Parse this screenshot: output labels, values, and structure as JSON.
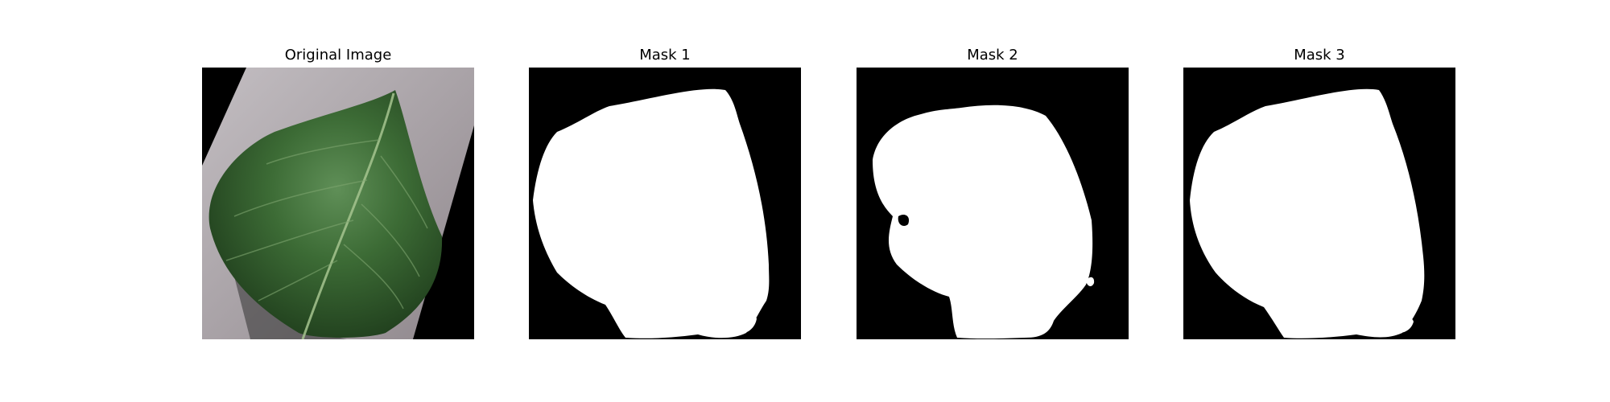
{
  "figure": {
    "panels": [
      {
        "title": "Original Image",
        "kind": "photo",
        "subject": "leaf-on-gray-surface"
      },
      {
        "title": "Mask 1",
        "kind": "binary-mask"
      },
      {
        "title": "Mask 2",
        "kind": "binary-mask"
      },
      {
        "title": "Mask 3",
        "kind": "binary-mask"
      }
    ],
    "colors": {
      "background": "#ffffff",
      "mask_foreground": "#ffffff",
      "mask_background": "#000000",
      "leaf_green": "#2f5a2a",
      "surface_gray": "#aaa2a6"
    }
  }
}
